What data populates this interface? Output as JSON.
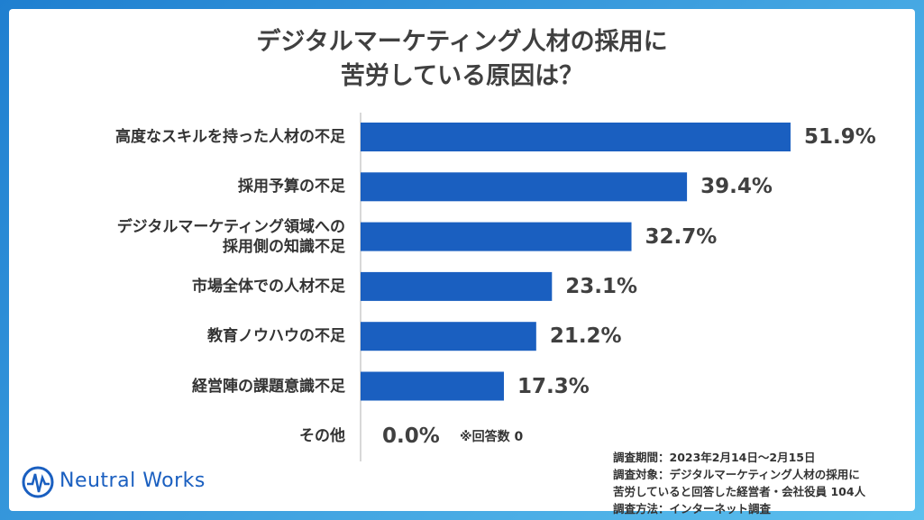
{
  "chart_data": {
    "type": "bar",
    "orientation": "horizontal",
    "title": "デジタルマーケティング人材の採用に\n苦労している原因は？",
    "categories": [
      "高度なスキルを持った人材の不足",
      "採用予算の不足",
      "デジタルマーケティング領域への\n採用側の知識不足",
      "市場全体での人材不足",
      "教育ノウハウの不足",
      "経営陣の課題意識不足",
      "その他"
    ],
    "values": [
      51.9,
      39.4,
      32.7,
      23.1,
      21.2,
      17.3,
      0.0
    ],
    "value_labels": [
      "51.9%",
      "39.4%",
      "32.7%",
      "23.1%",
      "21.2%",
      "17.3%",
      "0.0%"
    ],
    "color": "#1a5fc0",
    "annotation": "※回答数 0",
    "notes": [
      "調査期間：2023年2月14日～2月15日",
      "調査対象：デジタルマーケティング人材の採用に",
      "苦労していると回答した経営者・会社役員 104人",
      "調査方法：インターネット調査"
    ],
    "logo": "Neutral Works"
  }
}
